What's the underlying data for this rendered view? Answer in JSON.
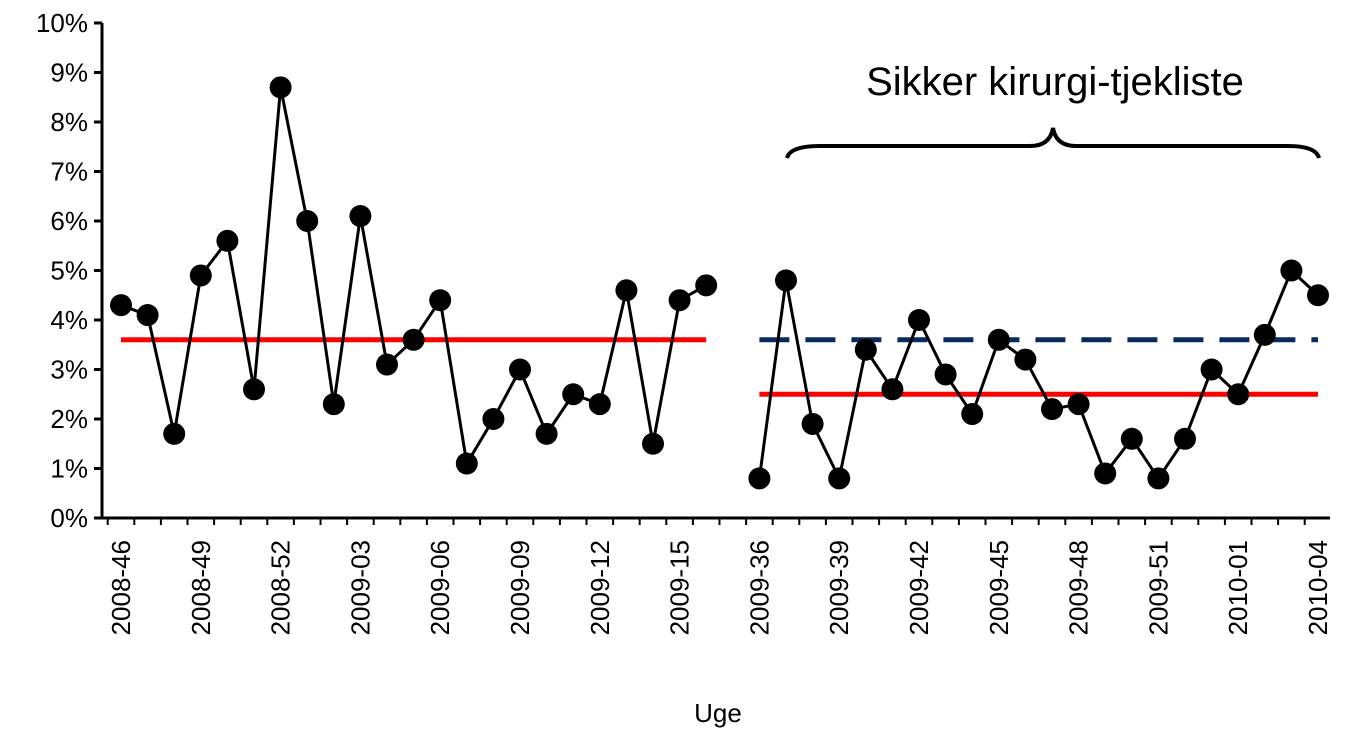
{
  "chart_data": {
    "type": "line",
    "xlabel": "Uge",
    "ylabel": "",
    "ylim": [
      0,
      0.1
    ],
    "yticks": [
      "0%",
      "1%",
      "2%",
      "3%",
      "4%",
      "5%",
      "6%",
      "7%",
      "8%",
      "9%",
      "10%"
    ],
    "annotation": "Sikker kirurgi-tjekliste",
    "x_tick_labels": [
      "2008-46",
      "2008-49",
      "2008-52",
      "2009-03",
      "2009-06",
      "2009-09",
      "2009-12",
      "2009-15",
      "2009-36",
      "2009-39",
      "2009-42",
      "2009-45",
      "2009-48",
      "2009-51",
      "2010-01",
      "2010-04"
    ],
    "segments": [
      {
        "weeks": [
          "2008-46",
          "2008-47",
          "2008-48",
          "2008-49",
          "2008-50",
          "2008-51",
          "2008-52",
          "2009-01",
          "2009-02",
          "2009-03",
          "2009-04",
          "2009-05",
          "2009-06",
          "2009-07",
          "2009-08",
          "2009-09",
          "2009-10",
          "2009-11",
          "2009-12",
          "2009-13",
          "2009-14",
          "2009-15",
          "2009-16"
        ],
        "values": [
          0.043,
          0.041,
          0.017,
          0.049,
          0.056,
          0.026,
          0.087,
          0.06,
          0.023,
          0.061,
          0.031,
          0.036,
          0.044,
          0.011,
          0.02,
          0.03,
          0.017,
          0.025,
          0.023,
          0.046,
          0.015,
          0.044,
          0.047
        ],
        "median": 0.036
      },
      {
        "weeks": [
          "2009-36",
          "2009-37",
          "2009-38",
          "2009-39",
          "2009-40",
          "2009-41",
          "2009-42",
          "2009-43",
          "2009-44",
          "2009-45",
          "2009-46",
          "2009-47",
          "2009-48",
          "2009-49",
          "2009-50",
          "2009-51",
          "2009-52",
          "2009-53",
          "2010-01",
          "2010-02",
          "2010-03",
          "2010-04"
        ],
        "values": [
          0.008,
          0.048,
          0.019,
          0.008,
          0.034,
          0.026,
          0.04,
          0.029,
          0.021,
          0.036,
          0.032,
          0.022,
          0.023,
          0.009,
          0.016,
          0.008,
          0.016,
          0.03,
          0.025,
          0.037,
          0.05,
          0.045
        ],
        "median": 0.025,
        "baseline_reference": 0.036
      }
    ],
    "colors": {
      "series": "#000000",
      "median": "#ff0000",
      "baseline_reference": "#0a2a5e"
    }
  }
}
